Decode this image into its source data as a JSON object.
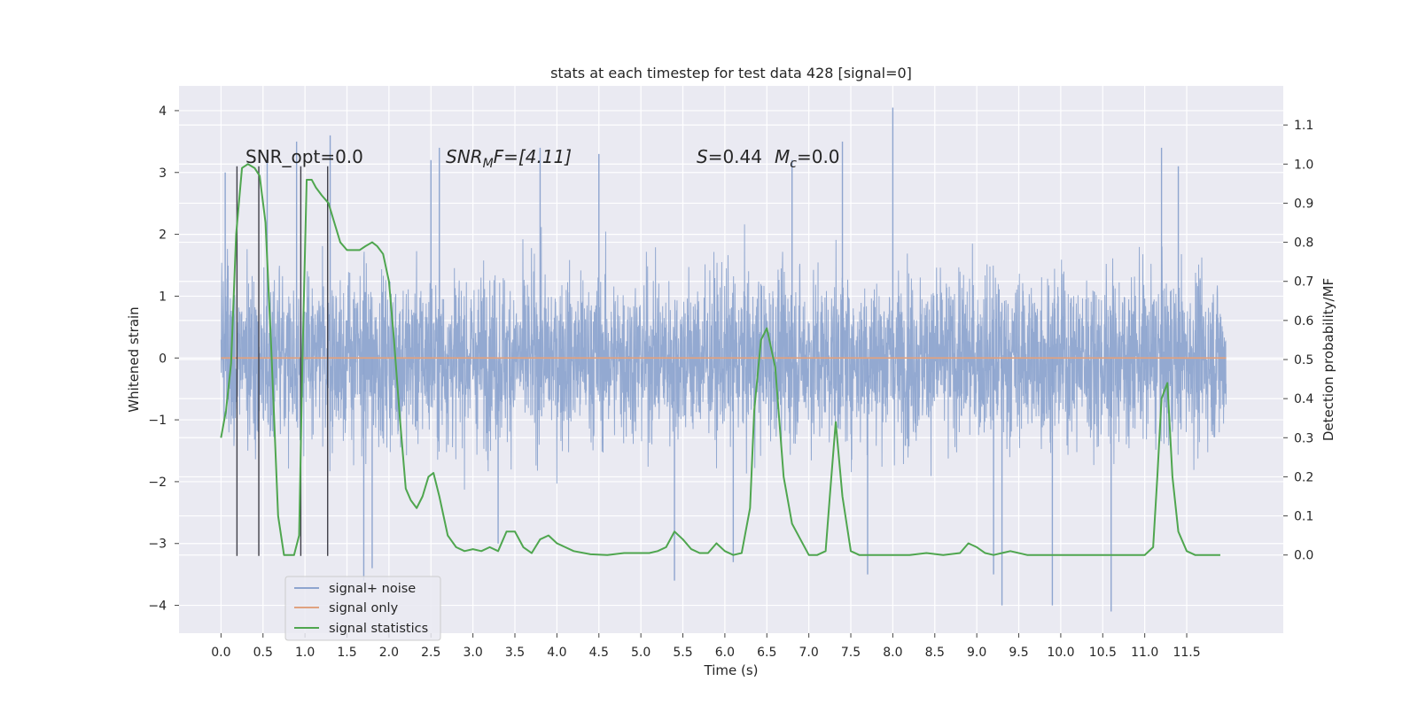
{
  "chart_data": {
    "type": "line",
    "title": "stats at each timestep for test data 428 [signal=0]",
    "xlabel": "Time (s)",
    "ylabel_left": "Whitened strain",
    "ylabel_right": "Detection probability/MF",
    "xlim": [
      -0.5,
      12.65
    ],
    "ylim_left": [
      -4.45,
      4.4
    ],
    "ylim_right": [
      -0.2,
      1.2
    ],
    "xticks": [
      "0.0",
      "0.5",
      "1.0",
      "1.5",
      "2.0",
      "2.5",
      "3.0",
      "3.5",
      "4.0",
      "4.5",
      "5.0",
      "5.5",
      "6.0",
      "6.5",
      "7.0",
      "7.5",
      "8.0",
      "8.5",
      "9.0",
      "9.5",
      "10.0",
      "10.5",
      "11.0",
      "11.5"
    ],
    "xtick_values": [
      0.0,
      0.5,
      1.0,
      1.5,
      2.0,
      2.5,
      3.0,
      3.5,
      4.0,
      4.5,
      5.0,
      5.5,
      6.0,
      6.5,
      7.0,
      7.5,
      8.0,
      8.5,
      9.0,
      9.5,
      10.0,
      10.5,
      11.0,
      11.5
    ],
    "yticks_left": [
      "−4",
      "−3",
      "−2",
      "−1",
      "0",
      "1",
      "2",
      "3",
      "4"
    ],
    "ytick_values_left": [
      -4,
      -3,
      -2,
      -1,
      0,
      1,
      2,
      3,
      4
    ],
    "yticks_right": [
      "0.0",
      "0.1",
      "0.2",
      "0.3",
      "0.4",
      "0.5",
      "0.6",
      "0.7",
      "0.8",
      "0.9",
      "1.0",
      "1.1"
    ],
    "ytick_values_right": [
      0.0,
      0.1,
      0.2,
      0.3,
      0.4,
      0.5,
      0.6,
      0.7,
      0.8,
      0.9,
      1.0,
      1.1
    ],
    "grid": true,
    "legend_position": "lower-left",
    "annotations": {
      "snr_opt": "SNR_opt=0.0",
      "snr_mf_prefix": "SNR",
      "snr_mf_sub": "M",
      "snr_mf_suffix": "F=[4.11]",
      "s_var": "S",
      "s_val": "=0.44",
      "mc_var": "M",
      "mc_sub": "c",
      "mc_val": "=0.0"
    },
    "series": [
      {
        "name": "signal+ noise",
        "color": "#8ea5cf",
        "x_range": [
          0.0,
          11.97
        ],
        "envelope_typical": [
          -2.5,
          2.8
        ],
        "extreme_peaks": [
          [
            0.05,
            3.0
          ],
          [
            0.55,
            3.3
          ],
          [
            0.9,
            3.5
          ],
          [
            1.3,
            3.6
          ],
          [
            1.7,
            -3.6
          ],
          [
            1.8,
            -3.4
          ],
          [
            2.5,
            3.2
          ],
          [
            2.6,
            3.4
          ],
          [
            3.3,
            -3.0
          ],
          [
            3.8,
            3.4
          ],
          [
            4.5,
            3.3
          ],
          [
            5.4,
            -3.6
          ],
          [
            6.1,
            -3.3
          ],
          [
            6.8,
            3.2
          ],
          [
            7.4,
            3.5
          ],
          [
            7.7,
            -3.5
          ],
          [
            8.0,
            4.05
          ],
          [
            9.2,
            -3.5
          ],
          [
            9.3,
            -4.0
          ],
          [
            9.9,
            -4.0
          ],
          [
            10.6,
            -4.1
          ],
          [
            11.2,
            3.4
          ],
          [
            11.4,
            3.1
          ]
        ]
      },
      {
        "name": "signal only",
        "color": "#e0a280",
        "x": [
          0.0,
          11.97
        ],
        "y": [
          0.0,
          0.0
        ]
      },
      {
        "name": "signal statistics",
        "color": "#4fa64f",
        "x": [
          0.0,
          0.06,
          0.12,
          0.18,
          0.25,
          0.32,
          0.4,
          0.46,
          0.53,
          0.6,
          0.68,
          0.75,
          0.8,
          0.87,
          0.93,
          0.97,
          1.02,
          1.08,
          1.13,
          1.2,
          1.28,
          1.35,
          1.42,
          1.5,
          1.58,
          1.65,
          1.72,
          1.8,
          1.86,
          1.93,
          2.0,
          2.06,
          2.13,
          2.2,
          2.26,
          2.33,
          2.4,
          2.47,
          2.53,
          2.6,
          2.7,
          2.8,
          2.9,
          3.0,
          3.1,
          3.2,
          3.3,
          3.4,
          3.5,
          3.6,
          3.7,
          3.8,
          3.9,
          4.0,
          4.2,
          4.4,
          4.6,
          4.8,
          5.0,
          5.1,
          5.2,
          5.3,
          5.4,
          5.5,
          5.6,
          5.7,
          5.8,
          5.9,
          6.0,
          6.1,
          6.2,
          6.3,
          6.35,
          6.43,
          6.5,
          6.6,
          6.7,
          6.8,
          6.9,
          7.0,
          7.1,
          7.2,
          7.25,
          7.32,
          7.4,
          7.5,
          7.6,
          7.7,
          7.8,
          8.0,
          8.2,
          8.4,
          8.6,
          8.8,
          8.9,
          9.0,
          9.1,
          9.2,
          9.3,
          9.4,
          9.6,
          9.8,
          10.0,
          10.2,
          10.4,
          10.6,
          10.8,
          11.0,
          11.1,
          11.15,
          11.2,
          11.27,
          11.33,
          11.4,
          11.5,
          11.6,
          11.8,
          11.9
        ],
        "y": [
          0.3,
          0.37,
          0.49,
          0.82,
          0.99,
          1.0,
          0.99,
          0.97,
          0.85,
          0.52,
          0.1,
          0.0,
          0.0,
          0.0,
          0.05,
          0.5,
          0.96,
          0.96,
          0.94,
          0.92,
          0.9,
          0.85,
          0.8,
          0.78,
          0.78,
          0.78,
          0.79,
          0.8,
          0.79,
          0.77,
          0.7,
          0.55,
          0.35,
          0.17,
          0.14,
          0.12,
          0.15,
          0.2,
          0.21,
          0.15,
          0.05,
          0.02,
          0.01,
          0.015,
          0.01,
          0.02,
          0.01,
          0.06,
          0.06,
          0.02,
          0.005,
          0.04,
          0.05,
          0.03,
          0.01,
          0.002,
          0.0,
          0.005,
          0.005,
          0.005,
          0.01,
          0.02,
          0.06,
          0.04,
          0.015,
          0.005,
          0.005,
          0.03,
          0.01,
          0.0,
          0.005,
          0.12,
          0.37,
          0.55,
          0.58,
          0.48,
          0.2,
          0.08,
          0.04,
          0.0,
          0.0,
          0.01,
          0.15,
          0.34,
          0.15,
          0.01,
          0.0,
          0.0,
          0.0,
          0.0,
          0.0,
          0.005,
          0.0,
          0.005,
          0.03,
          0.02,
          0.005,
          0.0,
          0.005,
          0.01,
          0.0,
          0.0,
          0.0,
          0.0,
          0.0,
          0.0,
          0.0,
          0.0,
          0.02,
          0.2,
          0.4,
          0.44,
          0.2,
          0.06,
          0.01,
          0.0,
          0.0,
          0.0
        ]
      }
    ],
    "markers": {
      "color": "#40404a",
      "x": [
        0.19,
        0.45,
        0.95,
        1.27
      ],
      "y_top": 3.1,
      "y_bottom": -3.2
    }
  }
}
